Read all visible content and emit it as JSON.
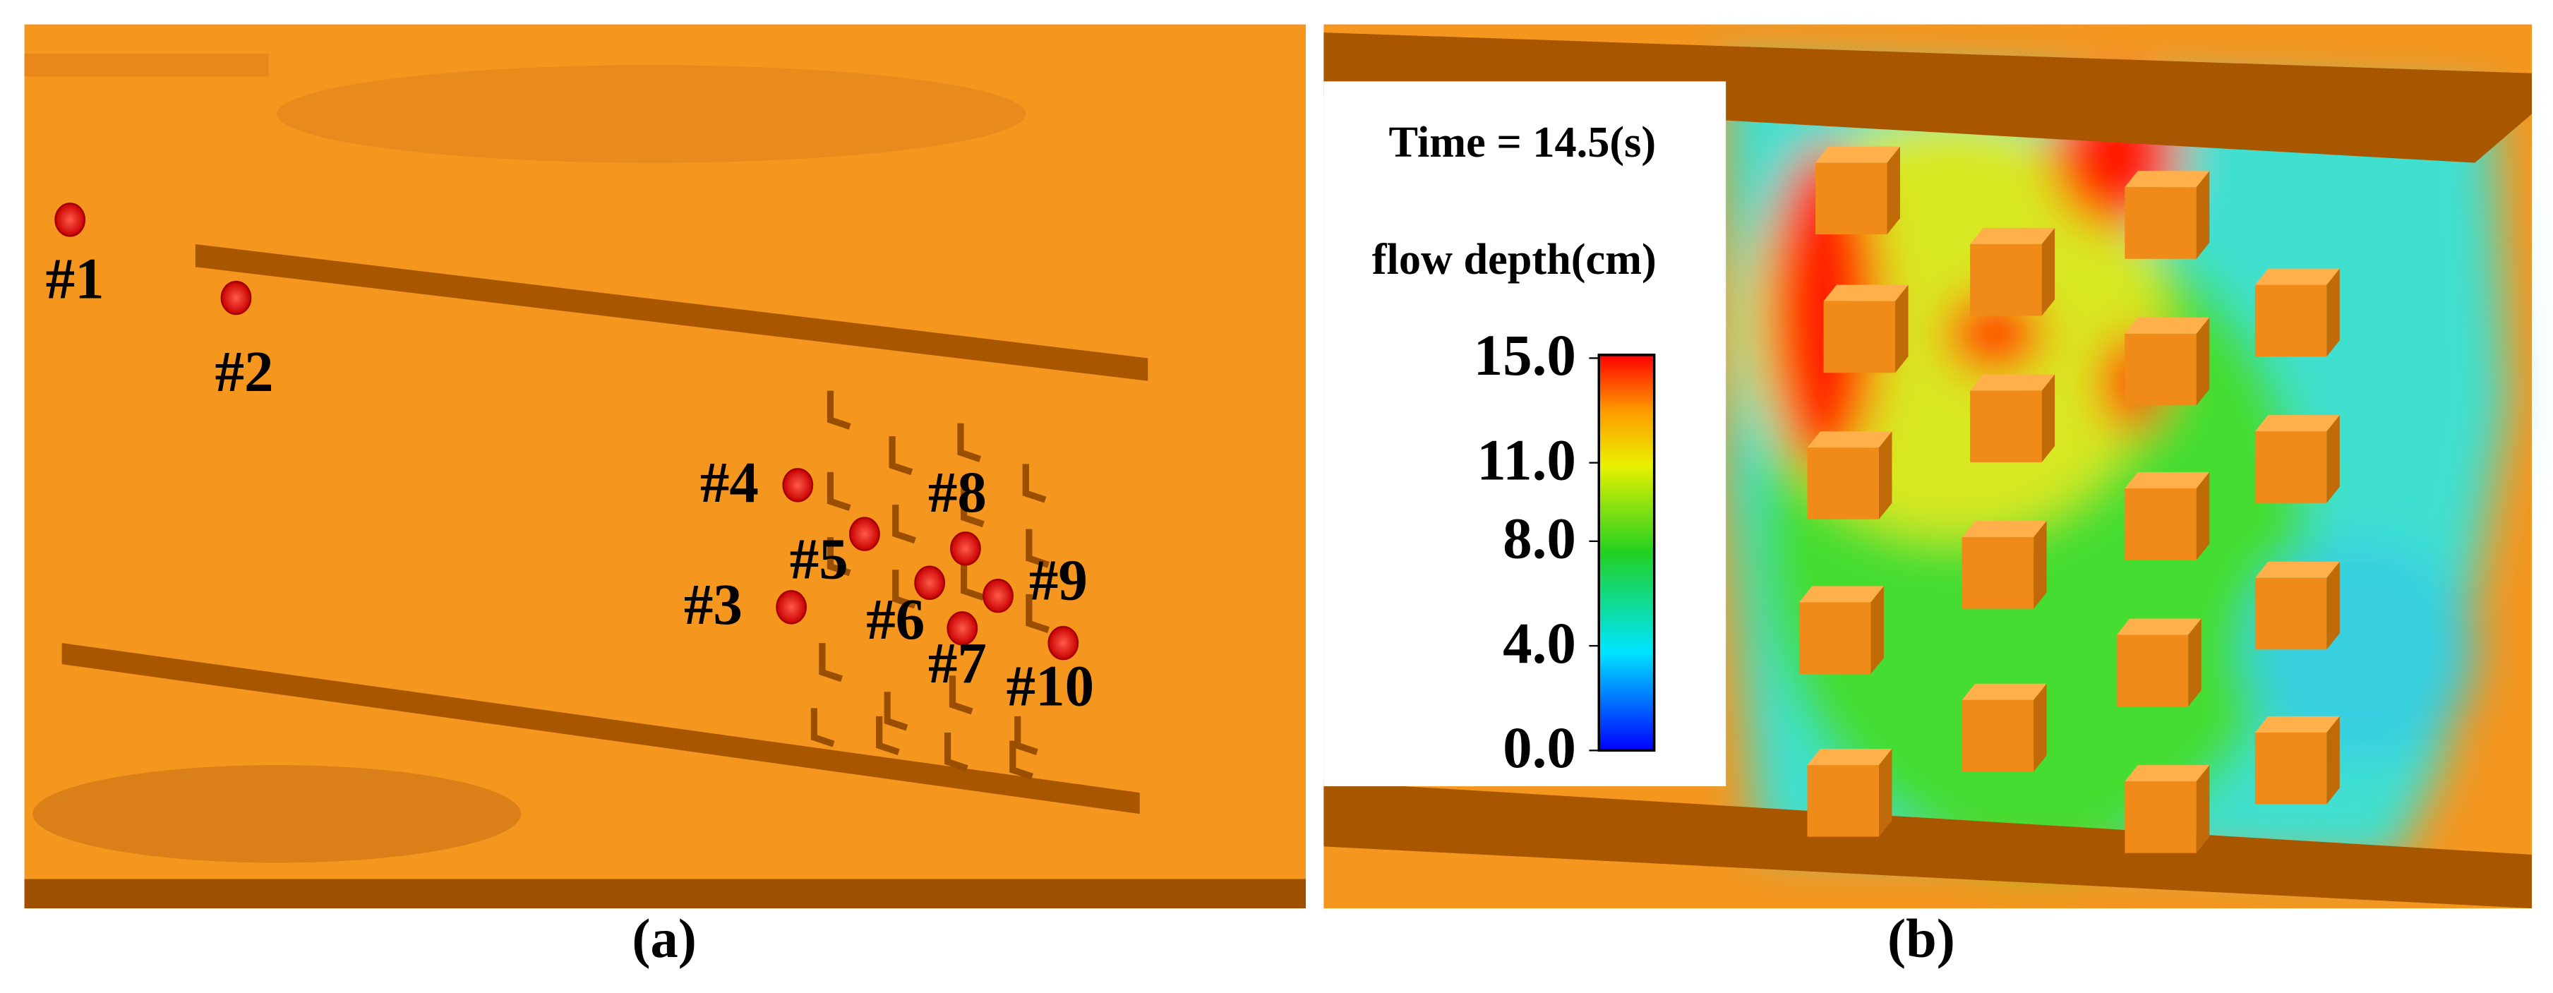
{
  "panel_a": {
    "caption": "(a)",
    "gauges": [
      "#1",
      "#2",
      "#3",
      "#4",
      "#5",
      "#6",
      "#7",
      "#8",
      "#9",
      "#10"
    ]
  },
  "panel_b": {
    "caption": "(b)",
    "time_label": "Time = 14.5(s)",
    "legend_title": "flow depth(cm)",
    "colorbar_ticks": [
      {
        "value": 15,
        "label": "15.0"
      },
      {
        "value": 11,
        "label": "11.0"
      },
      {
        "value": 8,
        "label": "8.0"
      },
      {
        "value": 4,
        "label": "4.0"
      },
      {
        "value": 0,
        "label": "0.0"
      }
    ]
  }
}
